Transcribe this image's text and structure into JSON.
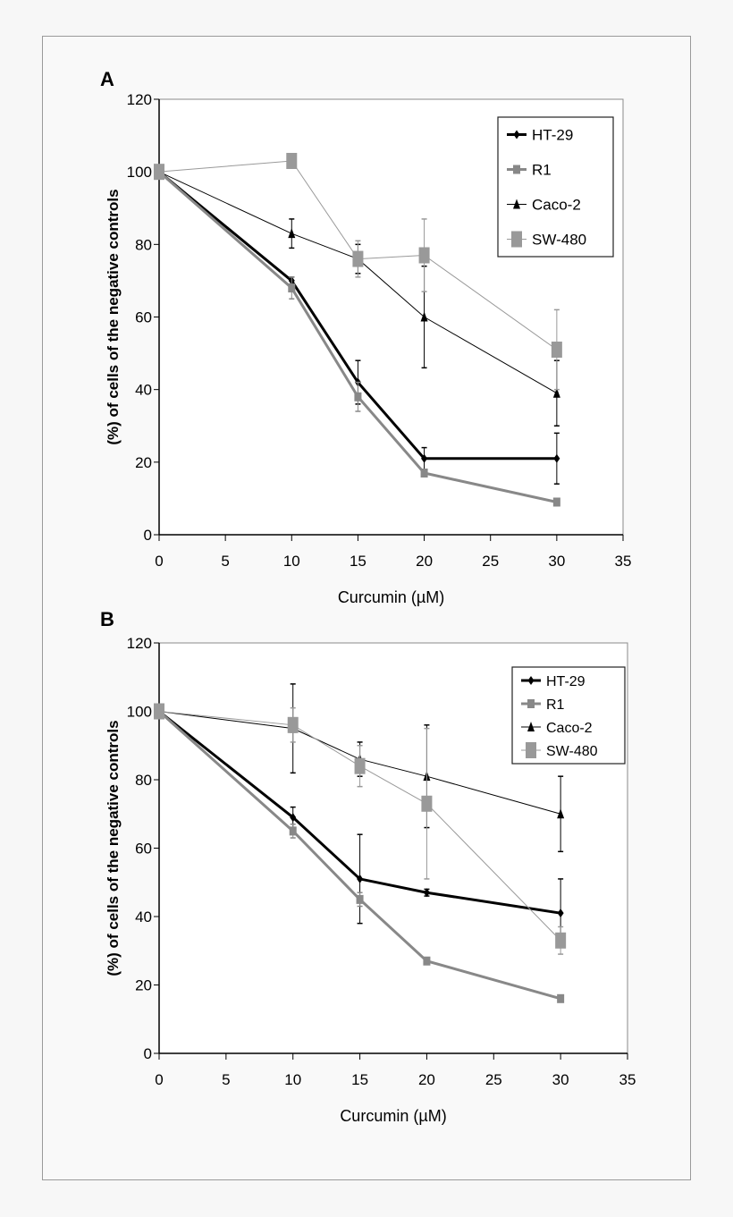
{
  "chart_data": [
    {
      "panel_label": "A",
      "type": "line",
      "xlabel": "Curcumin (µM)",
      "ylabel": "(%) of cells of the negative controls",
      "xlim": [
        0,
        35
      ],
      "ylim": [
        0,
        120
      ],
      "xticks": [
        0,
        5,
        10,
        15,
        20,
        25,
        30,
        35
      ],
      "yticks": [
        0,
        20,
        40,
        60,
        80,
        100,
        120
      ],
      "grid": false,
      "legend": "top-right",
      "x": [
        0,
        10,
        15,
        20,
        30
      ],
      "series": [
        {
          "name": "HT-29",
          "values": [
            100,
            70,
            42,
            21,
            21
          ],
          "errors": [
            0,
            1,
            6,
            3,
            7
          ],
          "color": "#000000",
          "marker": "diamond",
          "line": "thick"
        },
        {
          "name": "R1",
          "values": [
            100,
            68,
            38,
            17,
            9
          ],
          "errors": [
            0,
            3,
            4,
            1,
            1
          ],
          "color": "#888888",
          "marker": "square",
          "line": "thick"
        },
        {
          "name": "Caco-2",
          "values": [
            100,
            83,
            76,
            60,
            39
          ],
          "errors": [
            0,
            4,
            4,
            14,
            9
          ],
          "color": "#000000",
          "marker": "triangle",
          "line": "thin"
        },
        {
          "name": "SW-480",
          "values": [
            100,
            103,
            76,
            77,
            51
          ],
          "errors": [
            0,
            1,
            5,
            10,
            11
          ],
          "color": "#999999",
          "marker": "large-square",
          "line": "thin"
        }
      ]
    },
    {
      "panel_label": "B",
      "type": "line",
      "xlabel": "Curcumin (µM)",
      "ylabel": "(%) of cells of the negative controls",
      "xlim": [
        0,
        35
      ],
      "ylim": [
        0,
        120
      ],
      "xticks": [
        0,
        5,
        10,
        15,
        20,
        25,
        30,
        35
      ],
      "yticks": [
        0,
        20,
        40,
        60,
        80,
        100,
        120
      ],
      "grid": false,
      "legend": "top-right",
      "x": [
        0,
        10,
        15,
        20,
        30
      ],
      "series": [
        {
          "name": "HT-29",
          "values": [
            100,
            69,
            51,
            47,
            41
          ],
          "errors": [
            0,
            3,
            13,
            1,
            10
          ],
          "color": "#000000",
          "marker": "diamond",
          "line": "thick"
        },
        {
          "name": "R1",
          "values": [
            100,
            65,
            45,
            27,
            16
          ],
          "errors": [
            0,
            2,
            2,
            1,
            1
          ],
          "color": "#888888",
          "marker": "square",
          "line": "thick"
        },
        {
          "name": "Caco-2",
          "values": [
            100,
            95,
            86,
            81,
            70
          ],
          "errors": [
            0,
            13,
            5,
            15,
            11
          ],
          "color": "#000000",
          "marker": "triangle",
          "line": "thin"
        },
        {
          "name": "SW-480",
          "values": [
            100,
            96,
            84,
            73,
            33
          ],
          "errors": [
            0,
            5,
            6,
            22,
            4
          ],
          "color": "#999999",
          "marker": "large-square",
          "line": "thin"
        }
      ]
    }
  ]
}
